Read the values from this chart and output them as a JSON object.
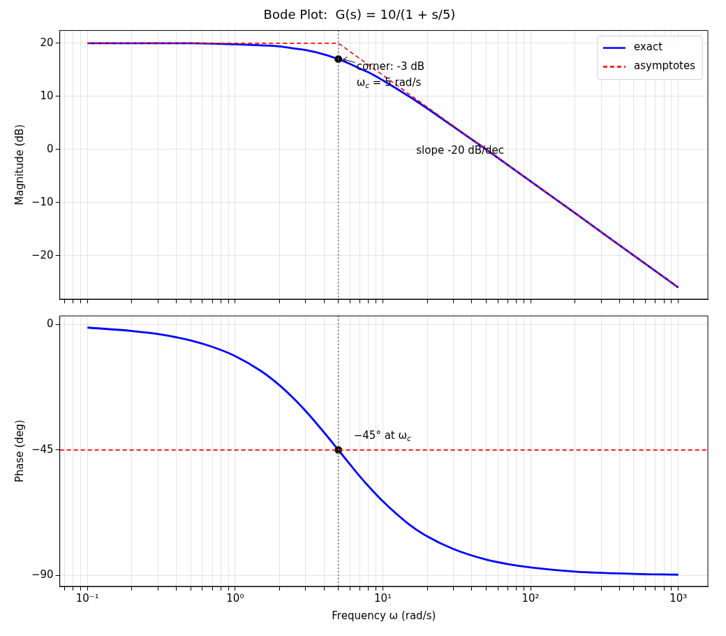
{
  "chart_data": [
    {
      "type": "line",
      "title": "Bode Plot:  G(s) = 10/(1 + s/5)",
      "ylabel": "Magnitude (dB)",
      "xlim": [
        0.065,
        1585
      ],
      "ylim": [
        -28.2,
        22.4
      ],
      "xticks": [
        {
          "value": 0.07,
          "label": null
        },
        {
          "value": 0.08,
          "label": null
        },
        {
          "value": 0.09,
          "label": null
        },
        {
          "value": 0.1,
          "label": null
        },
        {
          "value": 0.2,
          "label": null
        },
        {
          "value": 0.3,
          "label": null
        },
        {
          "value": 0.4,
          "label": null
        },
        {
          "value": 0.5,
          "label": null
        },
        {
          "value": 0.6,
          "label": null
        },
        {
          "value": 0.7,
          "label": null
        },
        {
          "value": 0.8,
          "label": null
        },
        {
          "value": 0.9,
          "label": null
        },
        {
          "value": 1,
          "label": null
        },
        {
          "value": 2,
          "label": null
        },
        {
          "value": 3,
          "label": null
        },
        {
          "value": 4,
          "label": null
        },
        {
          "value": 5,
          "label": null
        },
        {
          "value": 6,
          "label": null
        },
        {
          "value": 7,
          "label": null
        },
        {
          "value": 8,
          "label": null
        },
        {
          "value": 9,
          "label": null
        },
        {
          "value": 10,
          "label": null
        },
        {
          "value": 20,
          "label": null
        },
        {
          "value": 30,
          "label": null
        },
        {
          "value": 40,
          "label": null
        },
        {
          "value": 50,
          "label": null
        },
        {
          "value": 60,
          "label": null
        },
        {
          "value": 70,
          "label": null
        },
        {
          "value": 80,
          "label": null
        },
        {
          "value": 90,
          "label": null
        },
        {
          "value": 100,
          "label": null
        },
        {
          "value": 200,
          "label": null
        },
        {
          "value": 300,
          "label": null
        },
        {
          "value": 400,
          "label": null
        },
        {
          "value": 500,
          "label": null
        },
        {
          "value": 600,
          "label": null
        },
        {
          "value": 700,
          "label": null
        },
        {
          "value": 800,
          "label": null
        },
        {
          "value": 900,
          "label": null
        },
        {
          "value": 1000,
          "label": null
        }
      ],
      "yticks": [
        -20,
        -10,
        0,
        10,
        20
      ],
      "log": "x",
      "grid": true,
      "legend": "top right",
      "tick_labels": "y",
      "series": [
        {
          "name": "exact",
          "color": "#0000ff",
          "marker": "none",
          "line_style": "solid",
          "x": [
            0.1,
            0.3,
            0.5,
            1,
            1.5,
            2,
            2.5,
            3,
            4,
            5,
            6,
            7,
            8,
            10,
            15,
            20,
            30,
            50,
            100,
            200,
            500,
            1000
          ],
          "values": [
            20.0,
            20.0,
            20.0,
            19.8,
            19.6,
            19.4,
            19.0,
            18.7,
            17.9,
            17.0,
            16.1,
            15.2,
            14.5,
            13.0,
            10.0,
            7.7,
            4.3,
            0.0,
            -6.0,
            -12.0,
            -20.0,
            -26.0
          ]
        },
        {
          "name": "asymptotes",
          "color": "#ff0000",
          "marker": "none",
          "line_style": "dashed",
          "x": [
            0.1,
            5,
            1000
          ],
          "values": [
            20,
            20,
            -26.0
          ]
        },
        {
          "color": "#000000",
          "type": "scatter",
          "marker": "circle",
          "x": [
            5
          ],
          "values": [
            17.0
          ]
        }
      ],
      "ref_lines": [
        {
          "axis": "x",
          "value": 5,
          "color": "#808080",
          "line_style": "dotted"
        }
      ],
      "annotations": [
        {
          "text": "corner: -3 dB\nω$_{c}$ = 5 rad/s",
          "x": 5,
          "y": 17.0
        },
        "slope -20 dB/dec"
      ]
    },
    {
      "type": "line",
      "ylabel": "Phase (deg)",
      "xlabel": "Frequency ω (rad/s)",
      "xlim": [
        0.065,
        1585
      ],
      "ylim": [
        -93.9,
        3.1
      ],
      "xticks": [
        {
          "value": 0.07,
          "label": null
        },
        {
          "value": 0.08,
          "label": null
        },
        {
          "value": 0.09,
          "label": null
        },
        {
          "value": 0.1,
          "label": "10⁻¹"
        },
        {
          "value": 0.2,
          "label": null
        },
        {
          "value": 0.3,
          "label": null
        },
        {
          "value": 0.4,
          "label": null
        },
        {
          "value": 0.5,
          "label": null
        },
        {
          "value": 0.6,
          "label": null
        },
        {
          "value": 0.7,
          "label": null
        },
        {
          "value": 0.8,
          "label": null
        },
        {
          "value": 0.9,
          "label": null
        },
        {
          "value": 1,
          "label": "10⁰"
        },
        {
          "value": 2,
          "label": null
        },
        {
          "value": 3,
          "label": null
        },
        {
          "value": 4,
          "label": null
        },
        {
          "value": 5,
          "label": null
        },
        {
          "value": 6,
          "label": null
        },
        {
          "value": 7,
          "label": null
        },
        {
          "value": 8,
          "label": null
        },
        {
          "value": 9,
          "label": null
        },
        {
          "value": 10,
          "label": "10¹"
        },
        {
          "value": 20,
          "label": null
        },
        {
          "value": 30,
          "label": null
        },
        {
          "value": 40,
          "label": null
        },
        {
          "value": 50,
          "label": null
        },
        {
          "value": 60,
          "label": null
        },
        {
          "value": 70,
          "label": null
        },
        {
          "value": 80,
          "label": null
        },
        {
          "value": 90,
          "label": null
        },
        {
          "value": 100,
          "label": "10²"
        },
        {
          "value": 200,
          "label": null
        },
        {
          "value": 300,
          "label": null
        },
        {
          "value": 400,
          "label": null
        },
        {
          "value": 500,
          "label": null
        },
        {
          "value": 600,
          "label": null
        },
        {
          "value": 700,
          "label": null
        },
        {
          "value": 800,
          "label": null
        },
        {
          "value": 900,
          "label": null
        },
        {
          "value": 1000,
          "label": "10³"
        }
      ],
      "yticks": [
        -90,
        -45,
        0
      ],
      "log": "x",
      "grid": true,
      "series": [
        {
          "color": "#0000ff",
          "marker": "none",
          "line_style": "solid",
          "x": [
            0.1,
            0.2,
            0.3,
            0.5,
            0.7,
            1,
            1.5,
            2,
            2.5,
            3,
            4,
            5,
            6,
            7,
            8,
            10,
            15,
            20,
            30,
            50,
            70,
            100,
            200,
            500,
            1000
          ],
          "values": [
            -1.1,
            -2.3,
            -3.4,
            -5.7,
            -8.0,
            -11.3,
            -16.7,
            -21.8,
            -26.6,
            -31.0,
            -38.7,
            -45.0,
            -50.2,
            -54.5,
            -58.0,
            -63.4,
            -71.6,
            -76.0,
            -80.5,
            -84.3,
            -85.9,
            -87.1,
            -88.6,
            -89.4,
            -89.7
          ]
        },
        {
          "color": "#000000",
          "type": "scatter",
          "marker": "circle",
          "x": [
            5
          ],
          "values": [
            -45
          ]
        }
      ],
      "ref_lines": [
        {
          "axis": "x",
          "value": 5,
          "color": "#808080",
          "line_style": "dotted"
        },
        {
          "axis": "y",
          "value": -45,
          "color": "#ff0000",
          "line_style": "dashed"
        }
      ],
      "annotations": [
        {
          "text": "−45° at ω$_{c}$",
          "x": 5,
          "y": -45
        }
      ]
    }
  ]
}
